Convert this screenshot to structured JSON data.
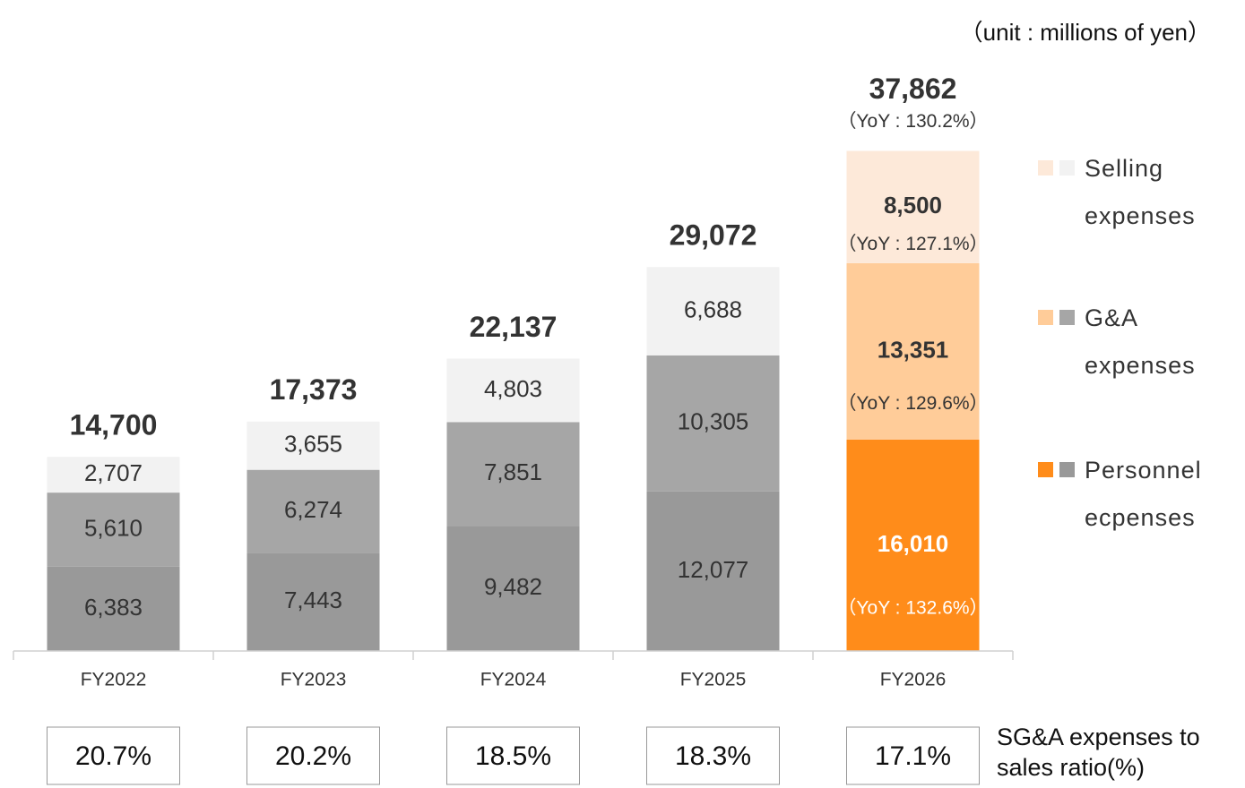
{
  "chart_data": {
    "type": "stacked_bar",
    "unit_note": "（unit : millions of yen）",
    "categories": [
      "FY2022",
      "FY2023",
      "FY2024",
      "FY2025",
      "FY2026"
    ],
    "ylim": [
      0,
      40000
    ],
    "highlight": [
      false,
      false,
      false,
      false,
      true
    ],
    "series": [
      {
        "name": "Personnel ecpenses",
        "color": "#999999",
        "highlight_color": "#FF8C1A",
        "values": [
          6383,
          7443,
          9482,
          12077,
          16010
        ],
        "value_labels": [
          "6,383",
          "7,443",
          "9,482",
          "12,077",
          "16,010"
        ],
        "yoy_label": "（YoY : 132.6%）"
      },
      {
        "name": "G&A expenses",
        "color": "#A6A6A6",
        "highlight_color": "#FFCC99",
        "values": [
          5610,
          6274,
          7851,
          10305,
          13351
        ],
        "value_labels": [
          "5,610",
          "6,274",
          "7,851",
          "10,305",
          "13,351"
        ],
        "yoy_label": "（YoY : 129.6%）"
      },
      {
        "name": "Selling expenses",
        "color": "#F2F2F2",
        "highlight_color": "#FDE9D9",
        "values": [
          2707,
          3655,
          4803,
          6688,
          8500
        ],
        "value_labels": [
          "2,707",
          "3,655",
          "4,803",
          "6,688",
          "8,500"
        ],
        "yoy_label": "（YoY : 127.1%）"
      }
    ],
    "totals": [
      14700,
      17373,
      22137,
      29072,
      37862
    ],
    "total_labels": [
      "14,700",
      "17,373",
      "22,137",
      "29,072",
      "37,862"
    ],
    "total_yoy_label": "（YoY : 130.2%）",
    "ratio_label": "SG&A expenses to sales ratio(%)",
    "ratios": [
      20.7,
      20.2,
      18.5,
      18.3,
      17.1
    ],
    "ratio_labels": [
      "20.7%",
      "20.2%",
      "18.5%",
      "18.3%",
      "17.1%"
    ]
  }
}
